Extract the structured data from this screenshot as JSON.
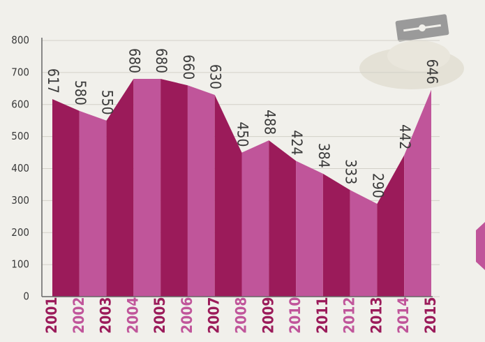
{
  "chart_data": {
    "type": "area",
    "categories": [
      "2001",
      "2002",
      "2003",
      "2004",
      "2005",
      "2006",
      "2007",
      "2008",
      "2009",
      "2010",
      "2011",
      "2012",
      "2013",
      "2014",
      "2015"
    ],
    "values": [
      617,
      580,
      550,
      680,
      680,
      660,
      630,
      450,
      488,
      424,
      384,
      333,
      290,
      442,
      646
    ],
    "colors": [
      "#9b1b5a",
      "#c0559a"
    ],
    "ylim": [
      0,
      800
    ],
    "yticks": [
      0,
      100,
      200,
      300,
      400,
      500,
      600,
      700,
      800
    ],
    "grid": true
  }
}
